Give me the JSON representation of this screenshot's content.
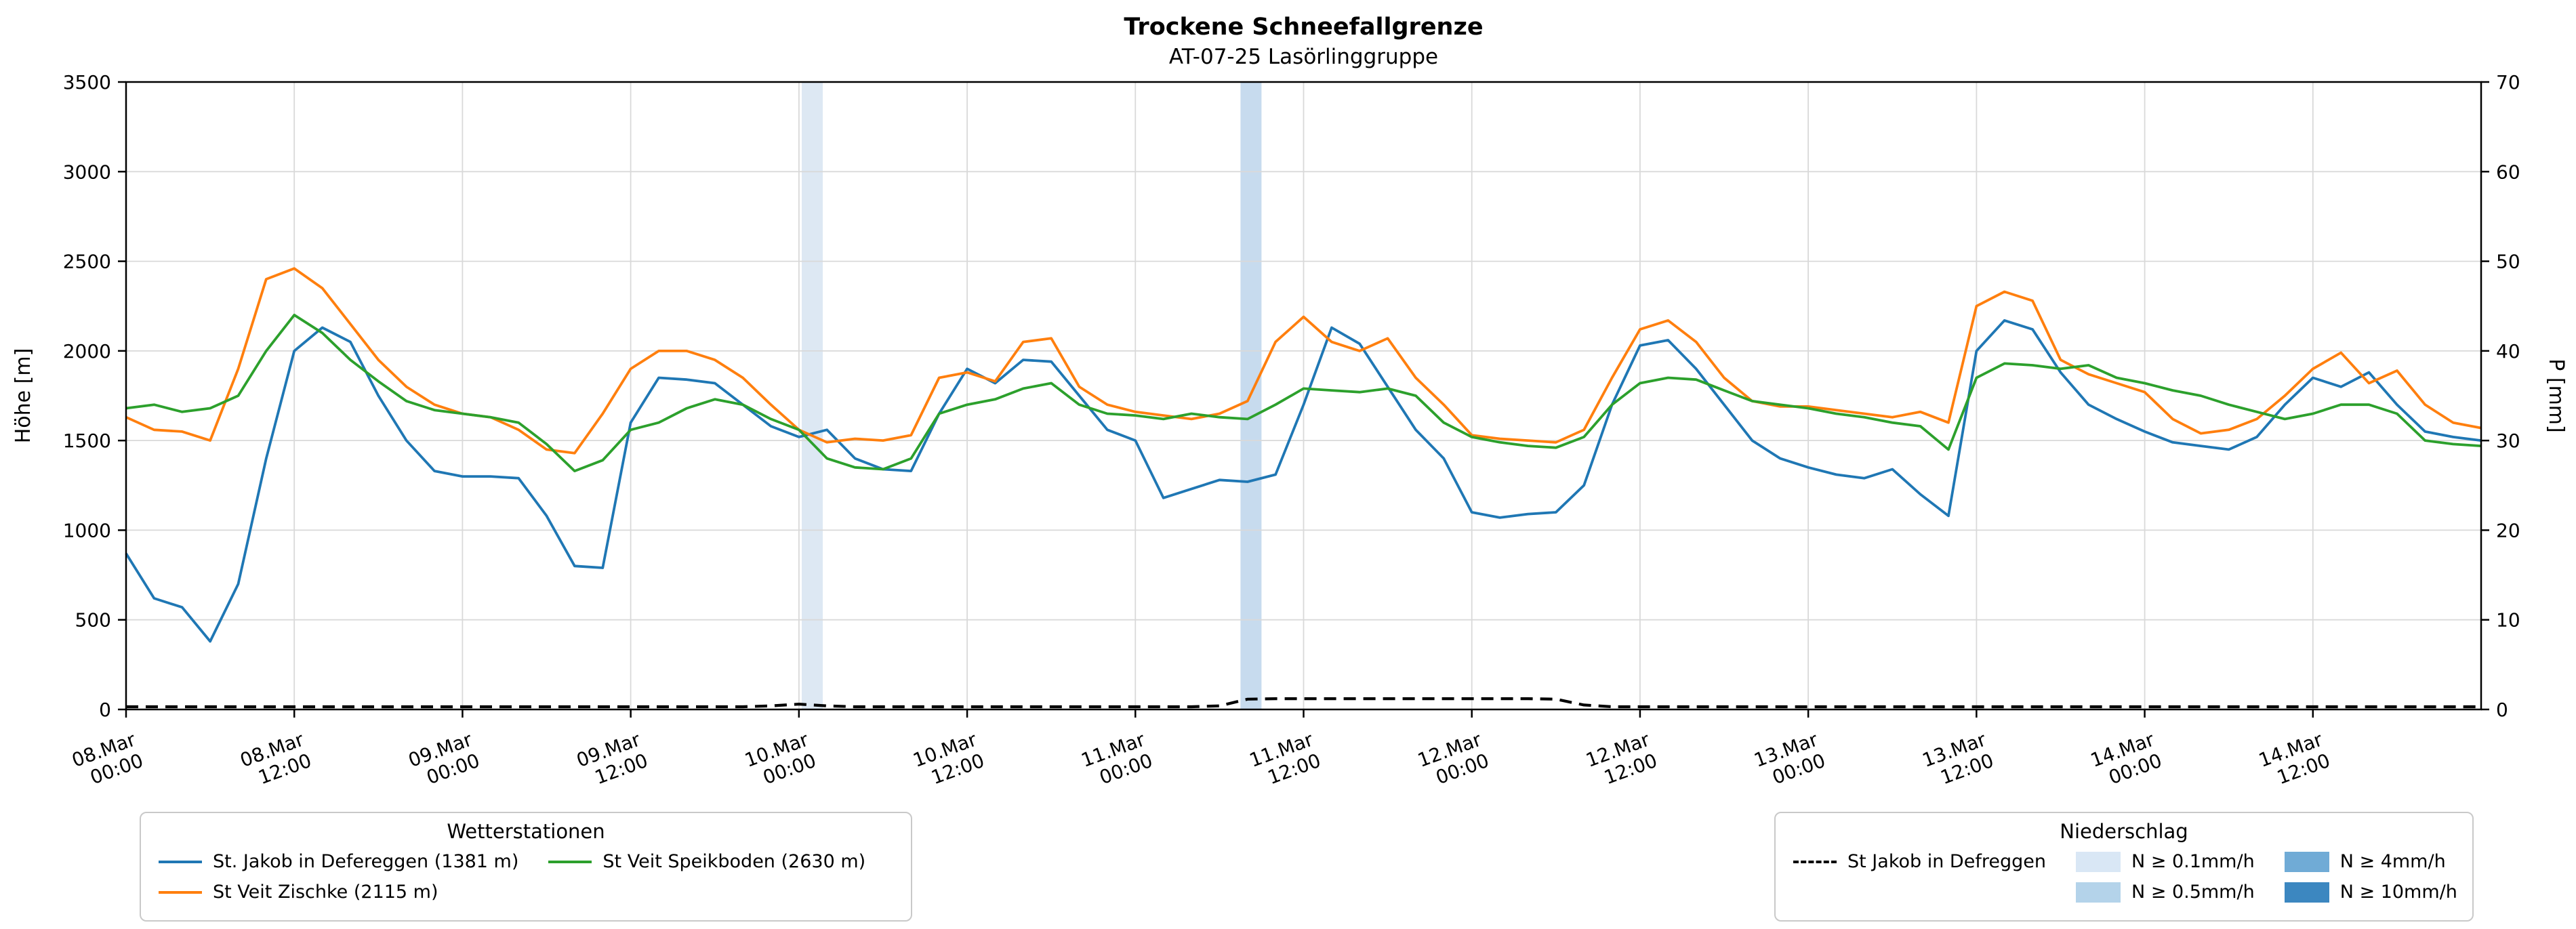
{
  "chart_data": {
    "type": "line",
    "title": "Trockene Schneefallgrenze",
    "subtitle": "AT-07-25 Lasörlinggruppe",
    "ylabel_left": "Höhe [m]",
    "ylabel_right": "P [mm]",
    "ylim_left": [
      0,
      3500
    ],
    "ylim_right": [
      0,
      70
    ],
    "yticks_left": [
      0,
      500,
      1000,
      1500,
      2000,
      2500,
      3000,
      3500
    ],
    "yticks_right": [
      0,
      10,
      20,
      30,
      40,
      50,
      60,
      70
    ],
    "grid": true,
    "x_unit": "hours since 08.Mar 00:00",
    "x_range_hours": [
      0,
      168
    ],
    "x_sample_step_hours": 2,
    "x_tick_hours": [
      0,
      12,
      24,
      36,
      48,
      60,
      72,
      84,
      96,
      108,
      120,
      132,
      144,
      156
    ],
    "x_tick_labels": [
      [
        "08.Mar",
        "00:00"
      ],
      [
        "08.Mar",
        "12:00"
      ],
      [
        "09.Mar",
        "00:00"
      ],
      [
        "09.Mar",
        "12:00"
      ],
      [
        "10.Mar",
        "00:00"
      ],
      [
        "10.Mar",
        "12:00"
      ],
      [
        "11.Mar",
        "00:00"
      ],
      [
        "11.Mar",
        "12:00"
      ],
      [
        "12.Mar",
        "00:00"
      ],
      [
        "12.Mar",
        "12:00"
      ],
      [
        "13.Mar",
        "00:00"
      ],
      [
        "13.Mar",
        "12:00"
      ],
      [
        "14.Mar",
        "00:00"
      ],
      [
        "14.Mar",
        "12:00"
      ]
    ],
    "series": [
      {
        "name": "St. Jakob in Defereggen (1381 m)",
        "color": "#1f77b4",
        "style": "solid",
        "axis": "left",
        "values": [
          870,
          620,
          570,
          380,
          700,
          1400,
          2000,
          2130,
          2050,
          1750,
          1500,
          1330,
          1300,
          1300,
          1290,
          1080,
          800,
          790,
          1600,
          1850,
          1840,
          1820,
          1700,
          1580,
          1520,
          1560,
          1400,
          1340,
          1330,
          1650,
          1900,
          1820,
          1950,
          1940,
          1750,
          1560,
          1500,
          1180,
          1230,
          1280,
          1270,
          1310,
          1700,
          2130,
          2040,
          1800,
          1560,
          1400,
          1100,
          1070,
          1090,
          1100,
          1250,
          1700,
          2030,
          2060,
          1900,
          1700,
          1500,
          1400,
          1350,
          1310,
          1290,
          1340,
          1200,
          1080,
          2000,
          2170,
          2120,
          1880,
          1700,
          1620,
          1550,
          1490,
          1470,
          1450,
          1520,
          1700,
          1850,
          1800,
          1880,
          1700,
          1550,
          1520,
          1500
        ]
      },
      {
        "name": "St Veit Zischke (2115 m)",
        "color": "#ff7f0e",
        "style": "solid",
        "axis": "left",
        "values": [
          1630,
          1560,
          1550,
          1500,
          1900,
          2400,
          2460,
          2350,
          2150,
          1950,
          1800,
          1700,
          1650,
          1630,
          1560,
          1450,
          1430,
          1650,
          1900,
          2000,
          2000,
          1950,
          1850,
          1700,
          1560,
          1490,
          1510,
          1500,
          1530,
          1850,
          1880,
          1830,
          2050,
          2070,
          1800,
          1700,
          1660,
          1640,
          1620,
          1650,
          1720,
          2050,
          2190,
          2050,
          2000,
          2070,
          1850,
          1700,
          1530,
          1510,
          1500,
          1490,
          1560,
          1850,
          2120,
          2170,
          2050,
          1850,
          1720,
          1690,
          1690,
          1670,
          1650,
          1630,
          1660,
          1600,
          2250,
          2330,
          2280,
          1950,
          1870,
          1820,
          1770,
          1620,
          1540,
          1560,
          1620,
          1750,
          1900,
          1990,
          1820,
          1890,
          1700,
          1600,
          1570
        ]
      },
      {
        "name": "St Veit Speikboden (2630 m)",
        "color": "#2ca02c",
        "style": "solid",
        "axis": "left",
        "values": [
          1680,
          1700,
          1660,
          1680,
          1750,
          2000,
          2200,
          2100,
          1950,
          1830,
          1720,
          1670,
          1650,
          1630,
          1600,
          1480,
          1330,
          1390,
          1560,
          1600,
          1680,
          1730,
          1700,
          1620,
          1560,
          1400,
          1350,
          1340,
          1400,
          1650,
          1700,
          1730,
          1790,
          1820,
          1700,
          1650,
          1640,
          1620,
          1650,
          1630,
          1620,
          1700,
          1790,
          1780,
          1770,
          1790,
          1750,
          1600,
          1520,
          1490,
          1470,
          1460,
          1520,
          1700,
          1820,
          1850,
          1840,
          1780,
          1720,
          1700,
          1680,
          1650,
          1630,
          1600,
          1580,
          1450,
          1850,
          1930,
          1920,
          1900,
          1920,
          1850,
          1820,
          1780,
          1750,
          1700,
          1660,
          1620,
          1650,
          1700,
          1700,
          1650,
          1500,
          1480,
          1470
        ]
      },
      {
        "name": "St Jakob in Defreggen",
        "color": "#000000",
        "style": "dashed",
        "axis": "right",
        "values": [
          0.3,
          0.3,
          0.3,
          0.3,
          0.3,
          0.3,
          0.3,
          0.3,
          0.3,
          0.3,
          0.3,
          0.3,
          0.3,
          0.3,
          0.3,
          0.3,
          0.3,
          0.3,
          0.3,
          0.3,
          0.3,
          0.3,
          0.3,
          0.4,
          0.6,
          0.4,
          0.3,
          0.3,
          0.3,
          0.3,
          0.3,
          0.3,
          0.3,
          0.3,
          0.3,
          0.3,
          0.3,
          0.3,
          0.3,
          0.4,
          1.15,
          1.2,
          1.2,
          1.2,
          1.2,
          1.2,
          1.2,
          1.2,
          1.2,
          1.2,
          1.2,
          1.15,
          0.5,
          0.3,
          0.3,
          0.3,
          0.3,
          0.3,
          0.3,
          0.3,
          0.3,
          0.3,
          0.3,
          0.3,
          0.3,
          0.3,
          0.3,
          0.3,
          0.3,
          0.3,
          0.3,
          0.3,
          0.3,
          0.3,
          0.3,
          0.3,
          0.3,
          0.3,
          0.3,
          0.3,
          0.3,
          0.3,
          0.3,
          0.3,
          0.3
        ]
      }
    ],
    "precip_bands": [
      {
        "start_hour": 48.2,
        "end_hour": 49.7,
        "level": "N ≥ 0.1mm/h",
        "color": "#dde8f3"
      },
      {
        "start_hour": 79.5,
        "end_hour": 81.0,
        "level": "N ≥ 0.5mm/h",
        "color": "#c7dbee"
      }
    ]
  },
  "legends": {
    "stations": {
      "title": "Wetterstationen",
      "columns": [
        [
          {
            "type": "line",
            "label": "St. Jakob in Defereggen (1381 m)",
            "color": "#1f77b4",
            "dash": false
          },
          {
            "type": "line",
            "label": "St Veit Zischke (2115 m)",
            "color": "#ff7f0e",
            "dash": false
          }
        ],
        [
          {
            "type": "line",
            "label": "St Veit Speikboden (2630 m)",
            "color": "#2ca02c",
            "dash": false
          }
        ]
      ]
    },
    "precip": {
      "title": "Niederschlag",
      "columns": [
        [
          {
            "type": "line",
            "label": "St Jakob in Defreggen",
            "color": "#000000",
            "dash": true
          }
        ],
        [
          {
            "type": "patch",
            "label": "N ≥ 0.1mm/h",
            "color": "#d9e7f5"
          },
          {
            "type": "patch",
            "label": "N ≥ 0.5mm/h",
            "color": "#b4d3ea"
          }
        ],
        [
          {
            "type": "patch",
            "label": "N ≥ 4mm/h",
            "color": "#70abd6"
          },
          {
            "type": "patch",
            "label": "N ≥ 10mm/h",
            "color": "#3c87c0"
          }
        ]
      ]
    }
  }
}
